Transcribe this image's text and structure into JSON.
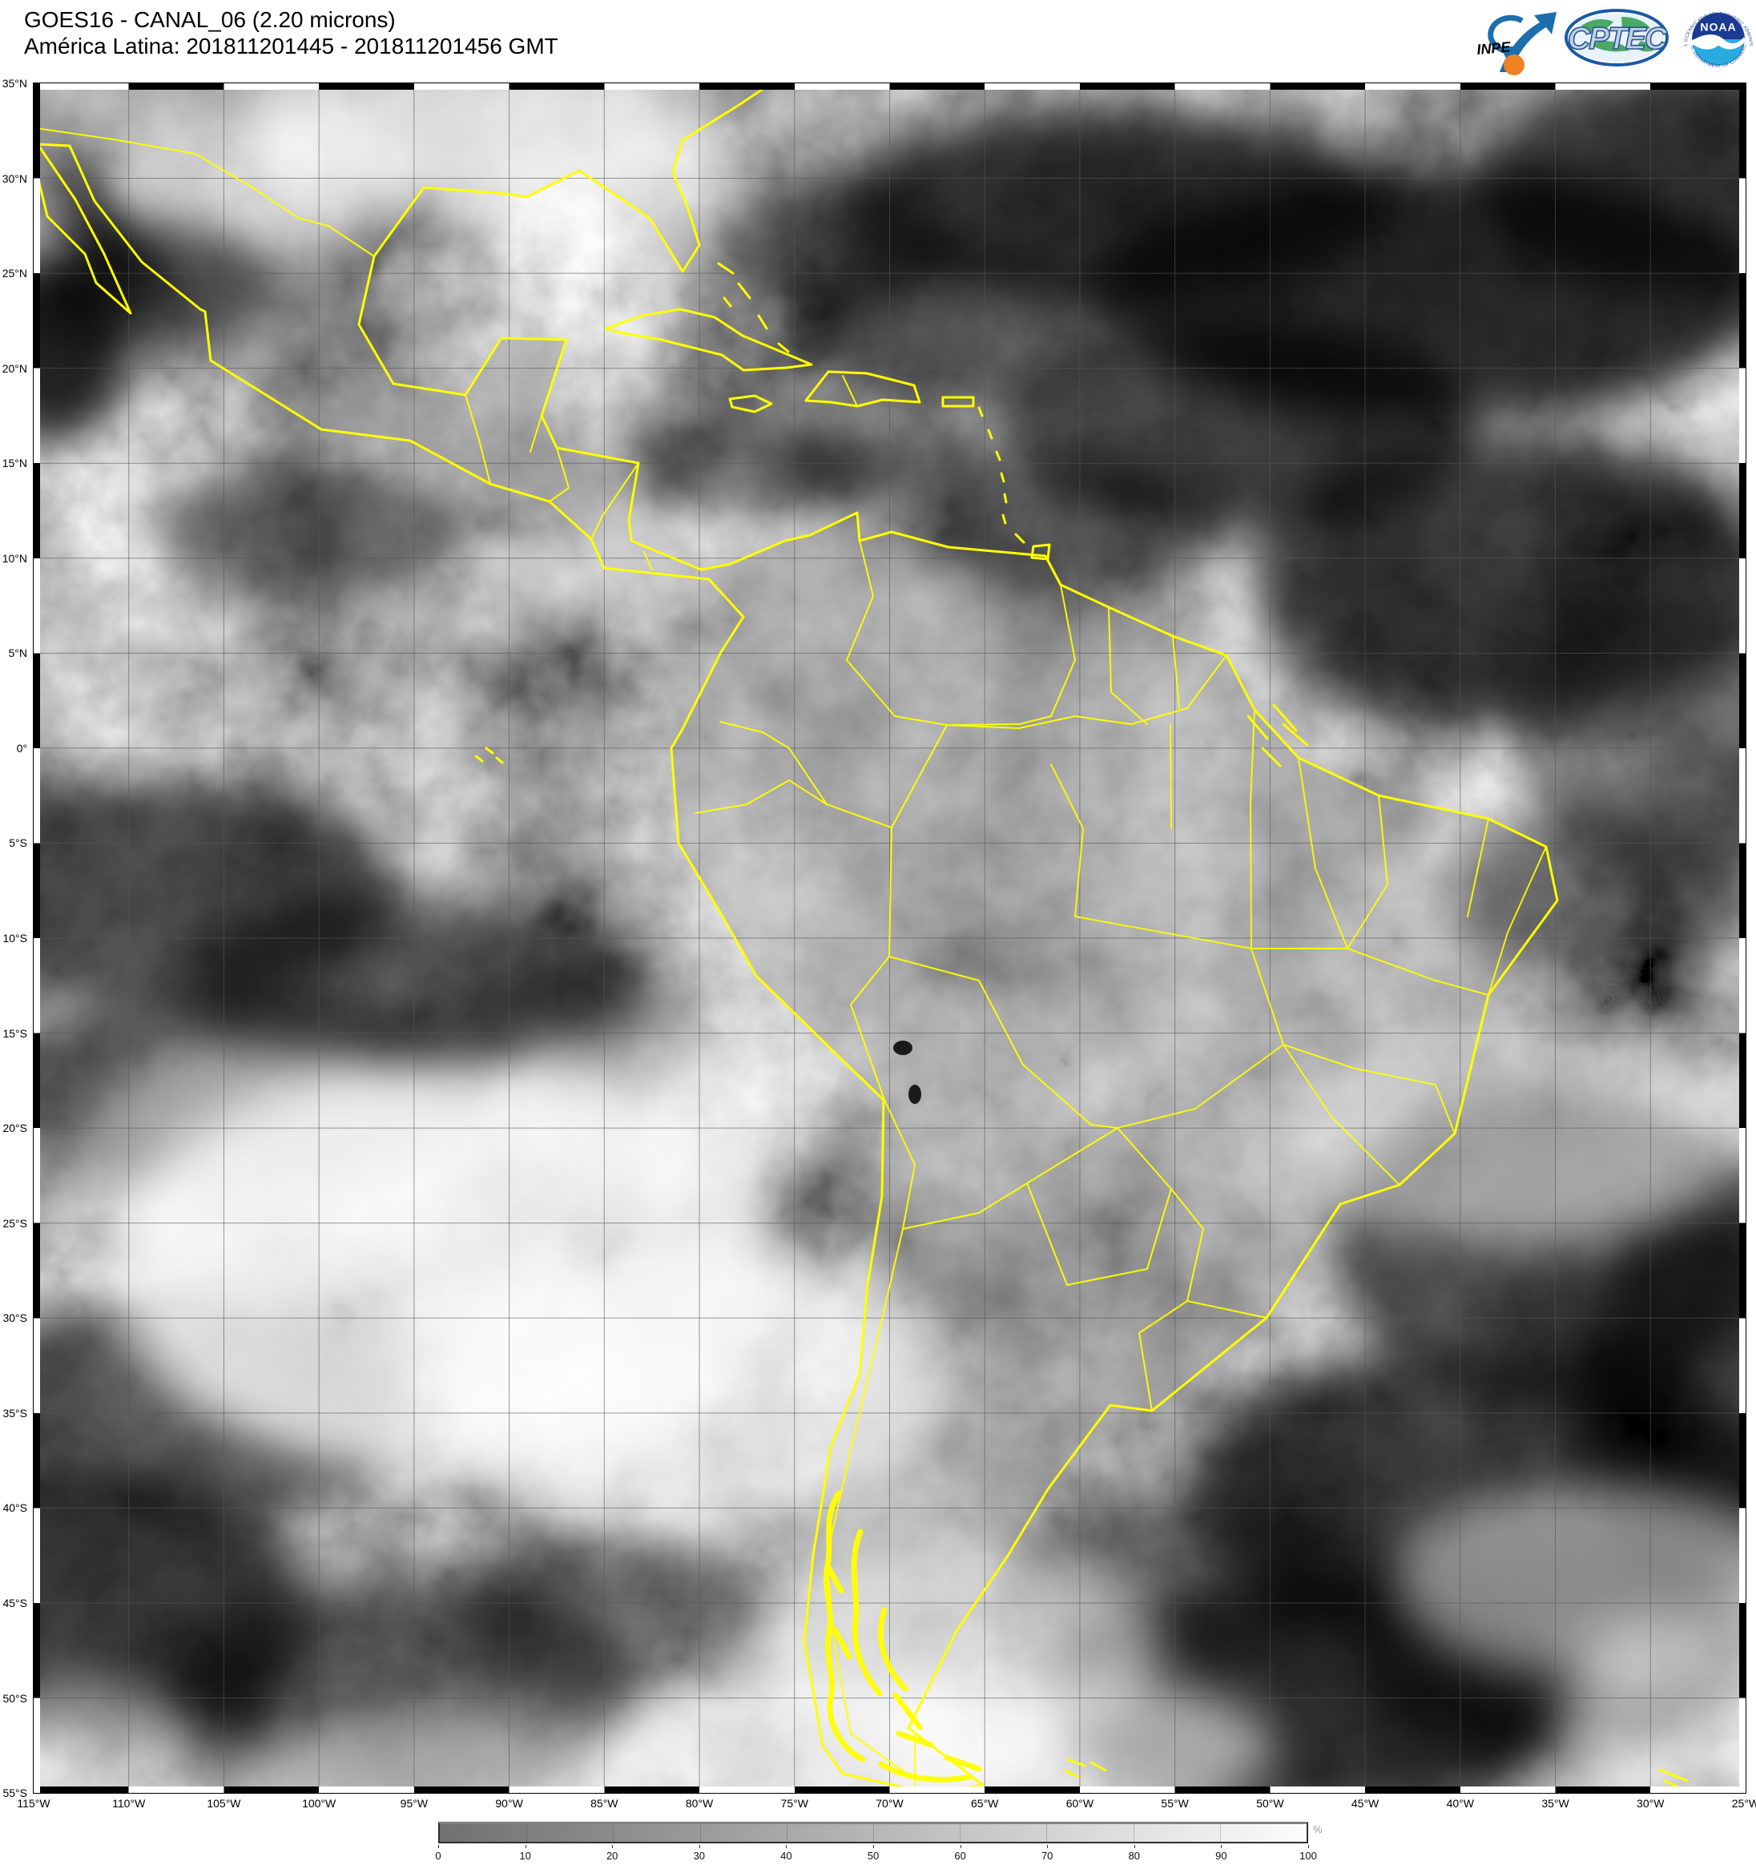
{
  "header": {
    "title_line1": "GOES16 - CANAL_06 (2.20 microns)",
    "title_line2": "América Latina: 201811201445 - 201811201456 GMT"
  },
  "logos": {
    "inpe": {
      "label": "INPE"
    },
    "cptec": {
      "label": "CPTEC"
    },
    "noaa": {
      "label": "NOAA",
      "arc_top": "NATIONAL OCEANIC AND ATMOSPHERIC ADMINISTRATION",
      "arc_bottom": "U.S. DEPARTMENT OF COMMERCE"
    }
  },
  "map": {
    "lat_labels": [
      "35°N",
      "30°N",
      "25°N",
      "20°N",
      "15°N",
      "10°N",
      "5°N",
      "0°",
      "5°S",
      "10°S",
      "15°S",
      "20°S",
      "25°S",
      "30°S",
      "35°S",
      "40°S",
      "45°S",
      "50°S",
      "55°S"
    ],
    "lon_labels": [
      "115°W",
      "110°W",
      "105°W",
      "100°W",
      "95°W",
      "90°W",
      "85°W",
      "80°W",
      "75°W",
      "70°W",
      "65°W",
      "60°W",
      "55°W",
      "50°W",
      "45°W",
      "40°W",
      "35°W",
      "30°W",
      "25°W"
    ],
    "coastline_color": "#ffff00",
    "grid_color": "#565656"
  },
  "colorbar": {
    "ticks": [
      "0",
      "10",
      "20",
      "30",
      "40",
      "50",
      "60",
      "70",
      "80",
      "90",
      "100"
    ],
    "unit": "%",
    "start_color": "#707070",
    "end_color": "#fdfdfd"
  }
}
